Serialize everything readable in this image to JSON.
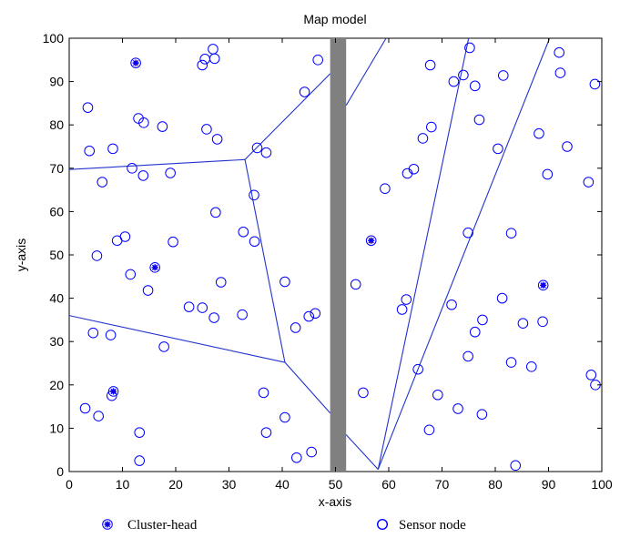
{
  "chart_data": {
    "type": "scatter",
    "title": "Map model",
    "xlabel": "x-axis",
    "ylabel": "y-axis",
    "xlim": [
      0,
      100
    ],
    "ylim": [
      0,
      100
    ],
    "xticks": [
      0,
      10,
      20,
      30,
      40,
      50,
      60,
      70,
      80,
      90,
      100
    ],
    "yticks": [
      0,
      10,
      20,
      30,
      40,
      50,
      60,
      70,
      80,
      90,
      100
    ],
    "grid": false,
    "legend_position": "bottom",
    "colors": {
      "marker": "#0000ff",
      "cluster_center": "#cc0000",
      "boundary": "#2233cc",
      "obstacle": "#808080"
    },
    "obstacle": {
      "x": [
        49,
        52
      ],
      "y": [
        0,
        100
      ]
    },
    "legend": [
      {
        "key": "cluster",
        "label": "Cluster-head"
      },
      {
        "key": "sensor",
        "label": "Sensor node"
      }
    ],
    "cluster_heads": [
      [
        12.5,
        94.3
      ],
      [
        16.1,
        47.1
      ],
      [
        8.3,
        18.5
      ],
      [
        56.7,
        53.3
      ],
      [
        89.0,
        43.0
      ]
    ],
    "sensor_nodes": [
      [
        3.5,
        84.0
      ],
      [
        3.8,
        74.0
      ],
      [
        6.2,
        66.8
      ],
      [
        8.2,
        74.5
      ],
      [
        11.8,
        70.0
      ],
      [
        13.0,
        81.5
      ],
      [
        14.0,
        80.5
      ],
      [
        13.9,
        68.3
      ],
      [
        17.5,
        79.6
      ],
      [
        19.0,
        68.9
      ],
      [
        25.0,
        93.8
      ],
      [
        25.5,
        95.2
      ],
      [
        27.0,
        97.5
      ],
      [
        27.3,
        95.3
      ],
      [
        25.8,
        79.0
      ],
      [
        27.8,
        76.7
      ],
      [
        27.5,
        59.8
      ],
      [
        9.0,
        53.3
      ],
      [
        10.5,
        54.2
      ],
      [
        5.2,
        49.8
      ],
      [
        11.5,
        45.5
      ],
      [
        14.8,
        41.8
      ],
      [
        19.5,
        53.0
      ],
      [
        22.5,
        38.0
      ],
      [
        25.0,
        37.8
      ],
      [
        27.2,
        35.5
      ],
      [
        28.5,
        43.7
      ],
      [
        32.7,
        55.3
      ],
      [
        34.8,
        53.1
      ],
      [
        34.7,
        63.8
      ],
      [
        32.5,
        36.2
      ],
      [
        35.3,
        74.7
      ],
      [
        37.0,
        73.6
      ],
      [
        44.2,
        87.6
      ],
      [
        46.7,
        95.0
      ],
      [
        4.5,
        32.0
      ],
      [
        7.8,
        31.5
      ],
      [
        17.8,
        28.8
      ],
      [
        8.0,
        17.5
      ],
      [
        3.0,
        14.6
      ],
      [
        5.5,
        12.8
      ],
      [
        13.2,
        9.0
      ],
      [
        13.2,
        2.5
      ],
      [
        36.5,
        18.2
      ],
      [
        37.0,
        9.0
      ],
      [
        40.5,
        12.5
      ],
      [
        40.5,
        43.8
      ],
      [
        42.5,
        33.2
      ],
      [
        45.0,
        35.8
      ],
      [
        46.2,
        36.5
      ],
      [
        42.7,
        3.2
      ],
      [
        45.5,
        4.5
      ],
      [
        53.8,
        43.2
      ],
      [
        55.2,
        18.2
      ],
      [
        59.3,
        65.3
      ],
      [
        62.5,
        37.4
      ],
      [
        63.3,
        39.7
      ],
      [
        63.5,
        68.8
      ],
      [
        64.7,
        69.8
      ],
      [
        65.5,
        23.6
      ],
      [
        66.4,
        76.9
      ],
      [
        67.8,
        93.8
      ],
      [
        68.0,
        79.5
      ],
      [
        67.6,
        9.6
      ],
      [
        69.2,
        17.7
      ],
      [
        71.8,
        38.5
      ],
      [
        72.2,
        90.0
      ],
      [
        73.0,
        14.5
      ],
      [
        74.0,
        91.5
      ],
      [
        74.9,
        55.1
      ],
      [
        74.9,
        26.6
      ],
      [
        75.2,
        97.8
      ],
      [
        76.2,
        89.0
      ],
      [
        77.0,
        81.2
      ],
      [
        76.2,
        32.2
      ],
      [
        77.6,
        35.0
      ],
      [
        77.5,
        13.2
      ],
      [
        80.5,
        74.5
      ],
      [
        81.5,
        91.4
      ],
      [
        81.3,
        40.0
      ],
      [
        83.0,
        55.0
      ],
      [
        83.0,
        25.2
      ],
      [
        85.2,
        34.2
      ],
      [
        86.8,
        24.2
      ],
      [
        88.2,
        78.0
      ],
      [
        88.9,
        34.6
      ],
      [
        89.8,
        68.6
      ],
      [
        92.0,
        96.7
      ],
      [
        92.2,
        92.0
      ],
      [
        93.5,
        75.0
      ],
      [
        83.8,
        1.4
      ],
      [
        97.5,
        66.8
      ],
      [
        98.0,
        22.3
      ],
      [
        98.7,
        89.4
      ],
      [
        98.8,
        20.0
      ]
    ],
    "boundaries": [
      [
        [
          0,
          69.7
        ],
        [
          33.0,
          72.0
        ]
      ],
      [
        [
          33.0,
          72.0
        ],
        [
          40.5,
          25.2
        ]
      ],
      [
        [
          33.0,
          72.0
        ],
        [
          49.0,
          91.8
        ]
      ],
      [
        [
          0,
          36.0
        ],
        [
          40.5,
          25.2
        ]
      ],
      [
        [
          40.5,
          25.2
        ],
        [
          49.0,
          13.5
        ]
      ],
      [
        [
          52.0,
          84.5
        ],
        [
          59.5,
          100
        ]
      ],
      [
        [
          52.0,
          8.5
        ],
        [
          58.0,
          0.5
        ]
      ],
      [
        [
          58.0,
          0.5
        ],
        [
          75.0,
          100
        ]
      ],
      [
        [
          58.0,
          0.5
        ],
        [
          90.2,
          100
        ]
      ]
    ]
  }
}
